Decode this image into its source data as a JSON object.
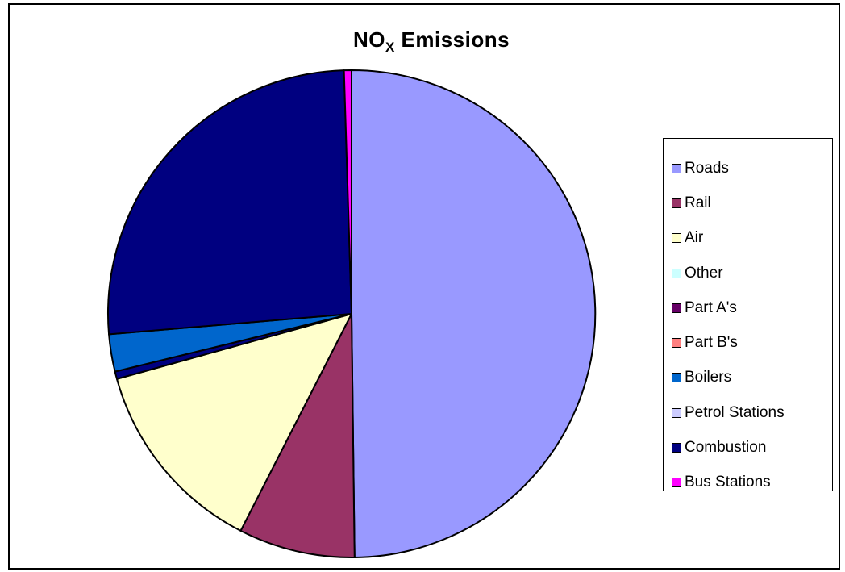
{
  "chart_data": {
    "type": "pie",
    "title_main": "NO",
    "title_sub": "X",
    "title_rest": " Emissions",
    "slices": [
      {
        "name": "Roads",
        "value": 50.3,
        "color": "#9999ff"
      },
      {
        "name": "Rail",
        "value": 7.8,
        "color": "#993366"
      },
      {
        "name": "Air",
        "value": 13.3,
        "color": "#ffffcc"
      },
      {
        "name": "Other",
        "value": 0.0,
        "color": "#ccffff"
      },
      {
        "name": "Part A's",
        "value": 0.0,
        "color": "#660066"
      },
      {
        "name": "Part B's",
        "value": 0.0,
        "color": "#ff8080"
      },
      {
        "name": "Boilers",
        "value": 2.5,
        "color": "#0066cc"
      },
      {
        "name": "Petrol Stations",
        "value": 0.0,
        "color": "#ccccff"
      },
      {
        "name": "Combustion",
        "value": 26.1,
        "color": "#000080"
      },
      {
        "name": "Bus Stations",
        "value": 0.5,
        "color": "#ff00ff"
      }
    ],
    "gap_slice": {
      "after": "Air",
      "value": 0.5,
      "color": "#000080"
    },
    "legend_position": "right"
  }
}
